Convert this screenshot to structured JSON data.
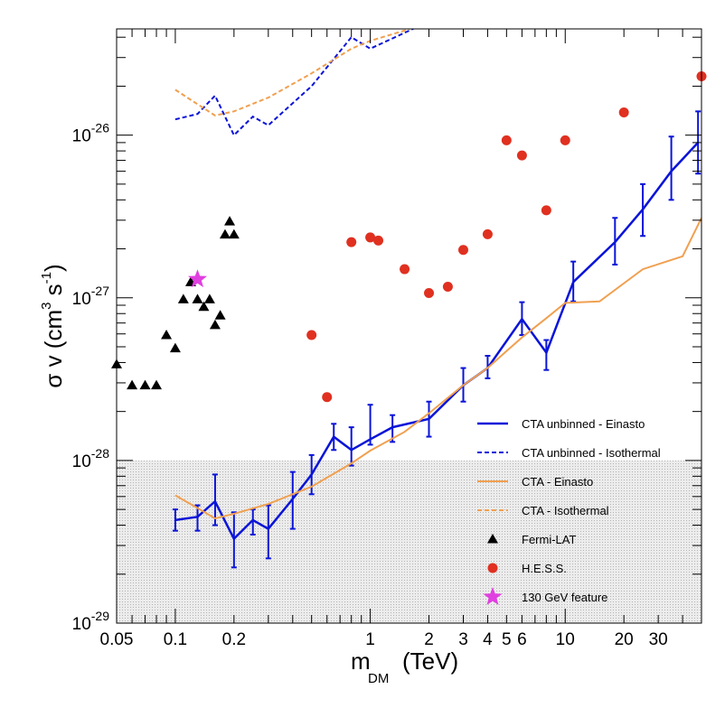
{
  "chart_data": {
    "type": "scatter",
    "title": "",
    "xlabel": {
      "main": "m",
      "sub": "DM",
      "unit": "(TeV)"
    },
    "ylabel": {
      "prefix": "σ v (cm",
      "sup1": "3",
      "mid": " s",
      "sup2": "-1",
      "suffix": ")"
    },
    "x_scale": "log",
    "y_scale": "log",
    "xlim": [
      0.05,
      50
    ],
    "ylim": [
      1e-29,
      4.5e-26
    ],
    "grid": false,
    "legend_position": "bottom-right",
    "shaded_region": {
      "y_max": 1e-28,
      "color": "#dcdcdc"
    },
    "x_tick_labels": [
      "0.05",
      "0.1",
      "0.2",
      "1",
      "2",
      "3",
      "4",
      "5",
      "6",
      "10",
      "20",
      "30"
    ],
    "x_tick_values": [
      0.05,
      0.1,
      0.2,
      1,
      2,
      3,
      4,
      5,
      6,
      10,
      20,
      30
    ],
    "y_tick_labels": [
      {
        "base": "10",
        "exp": "-29",
        "value": 1e-29
      },
      {
        "base": "10",
        "exp": "-28",
        "value": 1e-28
      },
      {
        "base": "10",
        "exp": "-27",
        "value": 1e-27
      },
      {
        "base": "10",
        "exp": "-26",
        "value": 1e-26
      }
    ],
    "series": [
      {
        "name": "CTA unbinned - Einasto",
        "style": "line",
        "dash": "solid",
        "color": "#0a14d8",
        "width": 2.5,
        "x": [
          0.1,
          0.13,
          0.16,
          0.2,
          0.25,
          0.3,
          0.4,
          0.5,
          0.65,
          0.8,
          1.0,
          1.3,
          2.0,
          3.0,
          4.0,
          6.0,
          8.0,
          11.0,
          18.0,
          25.0,
          35.0,
          48.0
        ],
        "y": [
          4.3e-29,
          4.5e-29,
          5.6e-29,
          3.3e-29,
          4.3e-29,
          3.8e-29,
          5.8e-29,
          8.2e-29,
          1.4e-28,
          1.16e-28,
          1.35e-28,
          1.6e-28,
          1.8e-28,
          2.9e-28,
          3.7e-28,
          7.4e-28,
          4.6e-28,
          1.25e-27,
          2.2e-27,
          3.5e-27,
          6e-27,
          9e-27
        ],
        "err_low": [
          3.7e-29,
          3.7e-29,
          4e-29,
          2.2e-29,
          3.5e-29,
          2.5e-29,
          3.8e-29,
          6.2e-29,
          1.16e-28,
          9.3e-29,
          1.25e-28,
          1.3e-28,
          1.4e-28,
          2.3e-28,
          3.2e-28,
          5.9e-28,
          3.6e-28,
          9.5e-28,
          1.6e-27,
          2.4e-27,
          4e-27,
          5.8e-27
        ],
        "err_high": [
          5e-29,
          5.3e-29,
          8.2e-29,
          4.8e-29,
          5e-29,
          5.3e-29,
          8.5e-29,
          1.08e-28,
          1.68e-28,
          1.6e-28,
          2.2e-28,
          1.9e-28,
          2.3e-28,
          3.7e-28,
          4.4e-28,
          9.4e-28,
          5.5e-28,
          1.67e-27,
          3.1e-27,
          5e-27,
          9.8e-27,
          1.4e-26
        ]
      },
      {
        "name": "CTA unbinned - Isothermal",
        "style": "line",
        "dash": "dashed",
        "color": "#0a14d8",
        "width": 2,
        "x": [
          0.1,
          0.13,
          0.16,
          0.2,
          0.25,
          0.3,
          0.5,
          0.8,
          1.0,
          2.0
        ],
        "y": [
          1.25e-26,
          1.35e-26,
          1.75e-26,
          1e-26,
          1.3e-26,
          1.15e-26,
          2e-26,
          4e-26,
          3.4e-26,
          5e-26
        ]
      },
      {
        "name": "CTA - Einasto",
        "style": "line",
        "dash": "solid",
        "color": "#f0a050",
        "width": 2,
        "x": [
          0.1,
          0.13,
          0.16,
          0.2,
          0.3,
          0.5,
          0.8,
          1.0,
          1.5,
          2.0,
          3.0,
          4.0,
          5.0,
          6.0,
          8.0,
          10.0,
          15.0,
          25.0,
          40.0,
          50.0
        ],
        "y": [
          6.1e-29,
          5.1e-29,
          4.4e-29,
          4.7e-29,
          5.4e-29,
          6.9e-29,
          9.6e-29,
          1.15e-28,
          1.5e-28,
          1.95e-28,
          2.9e-28,
          3.7e-28,
          4.7e-28,
          5.7e-28,
          7.5e-28,
          9.3e-28,
          9.5e-28,
          1.5e-27,
          1.8e-27,
          3.1e-27
        ]
      },
      {
        "name": "CTA - Isothermal",
        "style": "line",
        "dash": "dashed",
        "color": "#f0a050",
        "width": 2,
        "x": [
          0.1,
          0.13,
          0.16,
          0.2,
          0.3,
          0.5,
          0.8,
          1.0,
          1.5,
          2.0
        ],
        "y": [
          1.9e-26,
          1.55e-26,
          1.32e-26,
          1.4e-26,
          1.7e-26,
          2.4e-26,
          3.4e-26,
          3.8e-26,
          4.4e-26,
          5e-26
        ]
      },
      {
        "name": "Fermi-LAT",
        "style": "marker",
        "marker": "triangle",
        "color": "#000000",
        "x": [
          0.05,
          0.06,
          0.07,
          0.08,
          0.09,
          0.1,
          0.11,
          0.12,
          0.13,
          0.14,
          0.15,
          0.16,
          0.17,
          0.18,
          0.19,
          0.2
        ],
        "y": [
          3.9e-28,
          2.9e-28,
          2.9e-28,
          2.9e-28,
          5.9e-28,
          4.9e-28,
          9.8e-28,
          1.25e-27,
          9.8e-28,
          8.8e-28,
          9.8e-28,
          6.8e-28,
          7.8e-28,
          2.45e-27,
          2.95e-27,
          2.45e-27
        ]
      },
      {
        "name": "H.E.S.S.",
        "style": "marker",
        "marker": "circle",
        "color": "#e03020",
        "x": [
          0.5,
          0.6,
          0.8,
          1.0,
          1.1,
          1.5,
          2.0,
          2.5,
          3.0,
          4.0,
          5.0,
          6.0,
          8.0,
          10.0,
          20.0,
          50.0
        ],
        "y": [
          5.9e-28,
          2.45e-28,
          2.2e-27,
          2.35e-27,
          2.25e-27,
          1.5e-27,
          1.07e-27,
          1.17e-27,
          1.97e-27,
          2.46e-27,
          9.3e-27,
          7.5e-27,
          3.45e-27,
          9.3e-27,
          1.38e-26,
          2.3e-26
        ]
      },
      {
        "name": "130 GeV feature",
        "style": "marker",
        "marker": "star",
        "color": "#e040e0",
        "x": [
          0.13
        ],
        "y": [
          1.3e-27
        ]
      }
    ]
  }
}
